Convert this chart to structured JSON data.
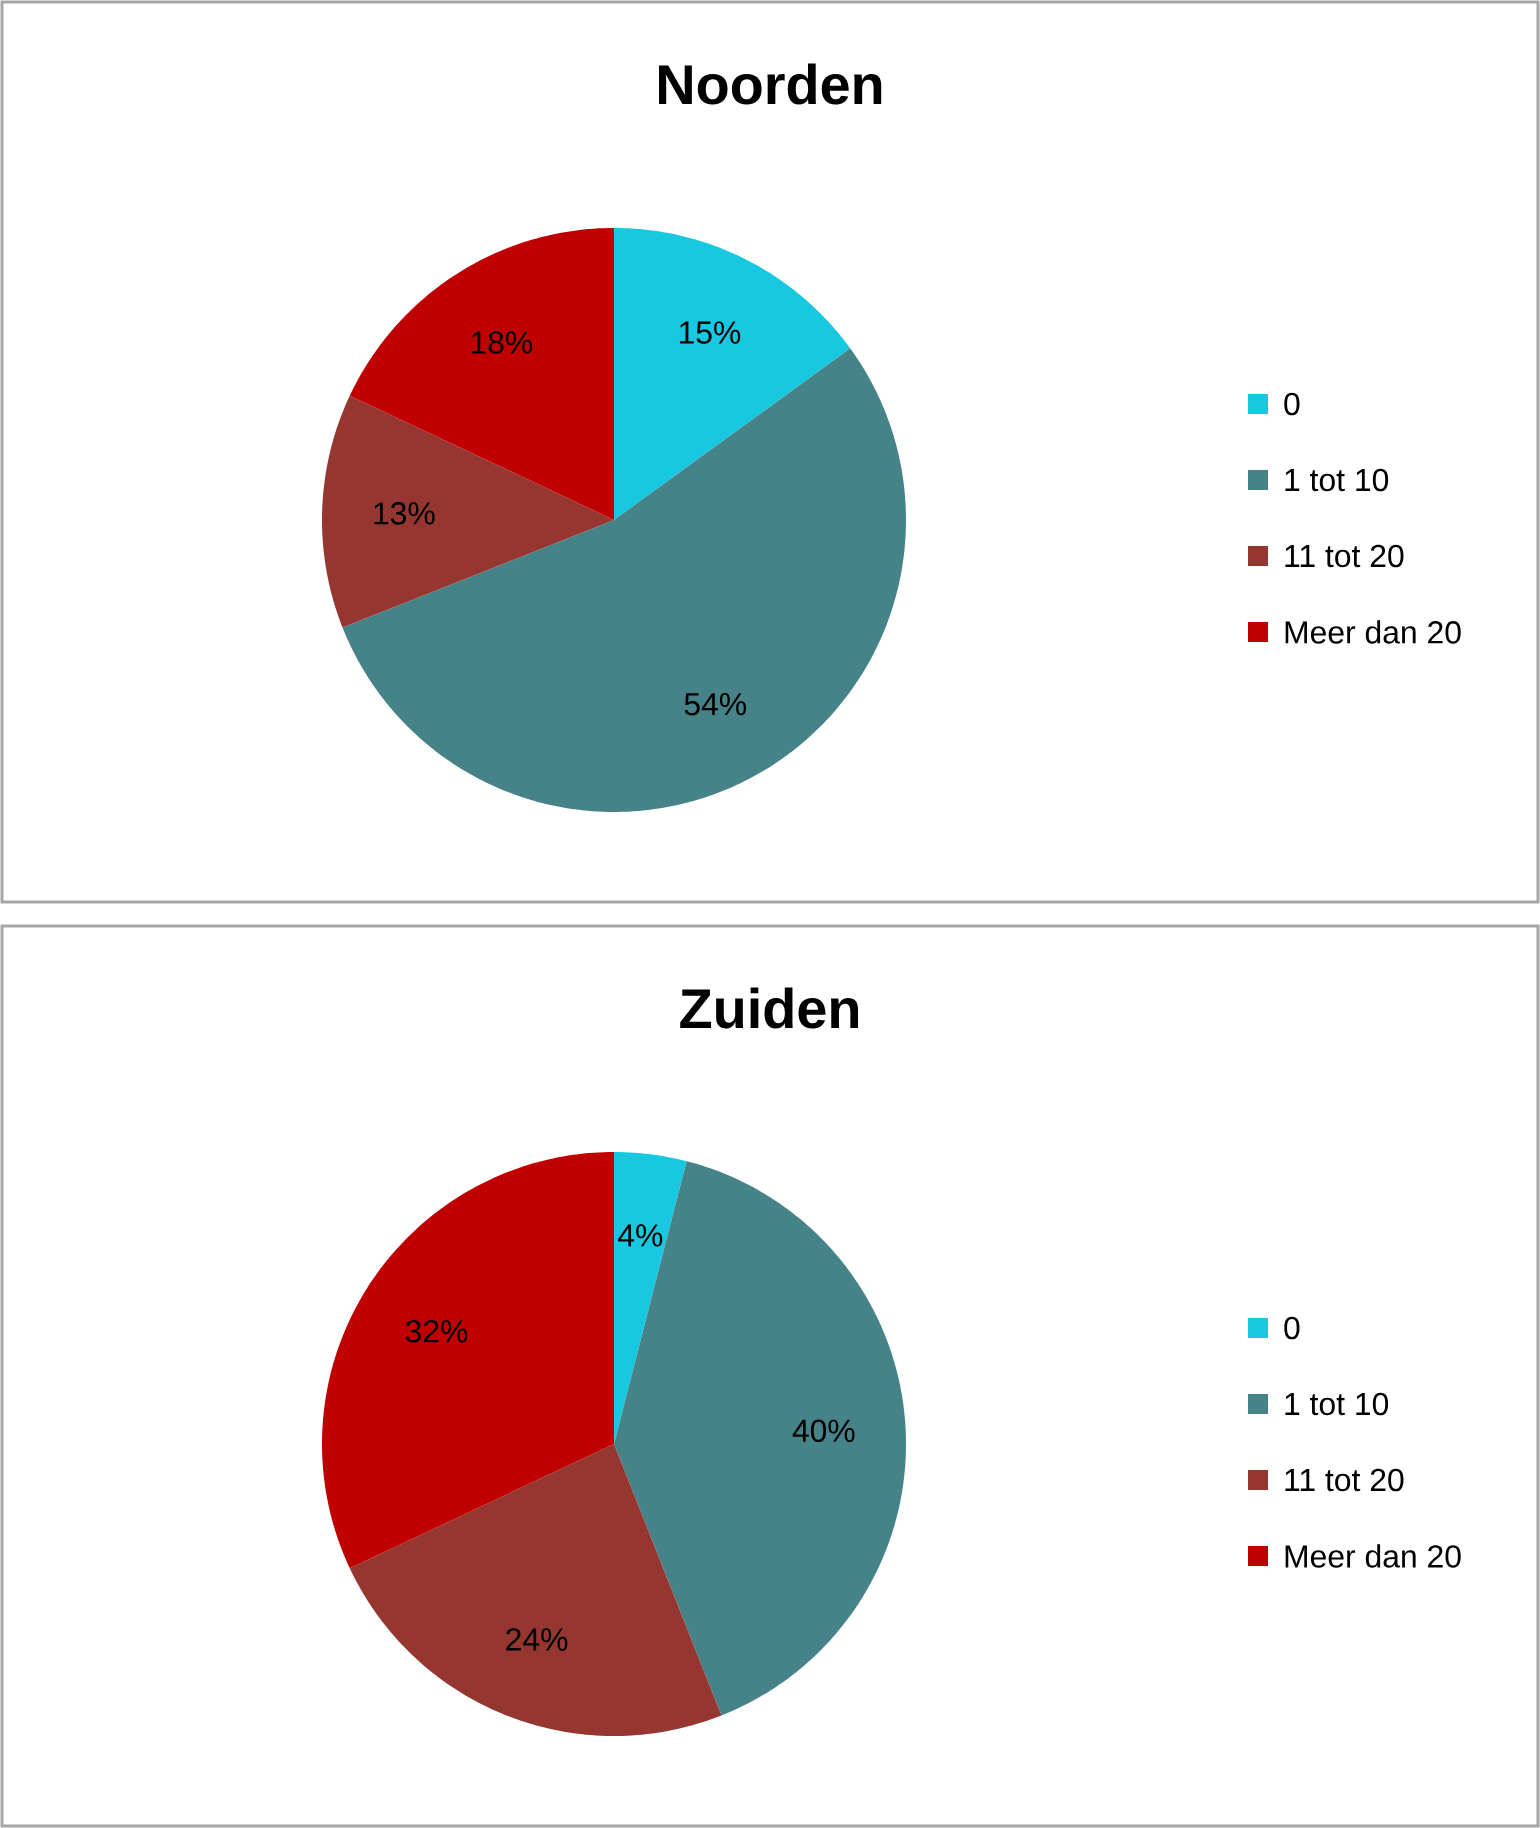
{
  "chart_data": [
    {
      "type": "pie",
      "title": "Noorden",
      "categories": [
        "0",
        "1 tot 10",
        "11 tot 20",
        "Meer dan 20"
      ],
      "values": [
        15,
        54,
        13,
        18
      ],
      "value_labels": [
        "15%",
        "54%",
        "13%",
        "18%"
      ],
      "colors": [
        "#17c8e0",
        "#468389",
        "#953730",
        "#c00000"
      ],
      "legend": "right"
    },
    {
      "type": "pie",
      "title": "Zuiden",
      "categories": [
        "0",
        "1 tot 10",
        "11 tot 20",
        "Meer dan 20"
      ],
      "values": [
        4,
        40,
        24,
        32
      ],
      "value_labels": [
        "4%",
        "40%",
        "24%",
        "32%"
      ],
      "colors": [
        "#17c8e0",
        "#468389",
        "#953730",
        "#c00000"
      ],
      "legend": "right"
    }
  ]
}
